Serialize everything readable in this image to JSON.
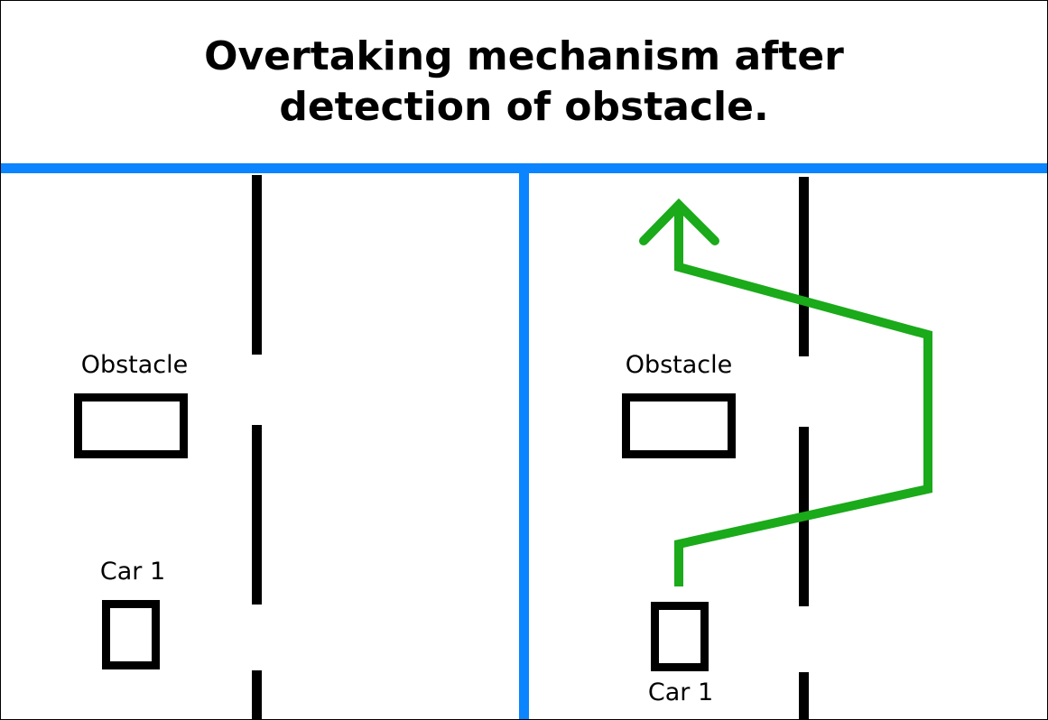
{
  "title": "Overtaking mechanism after detection of obstacle.",
  "left_panel": {
    "obstacle_label": "Obstacle",
    "car_label": "Car 1"
  },
  "right_panel": {
    "obstacle_label": "Obstacle",
    "car_label": "Car 1"
  },
  "colors": {
    "divider": "#0a84ff",
    "path": "#1aaa1a",
    "lines": "#000000"
  }
}
